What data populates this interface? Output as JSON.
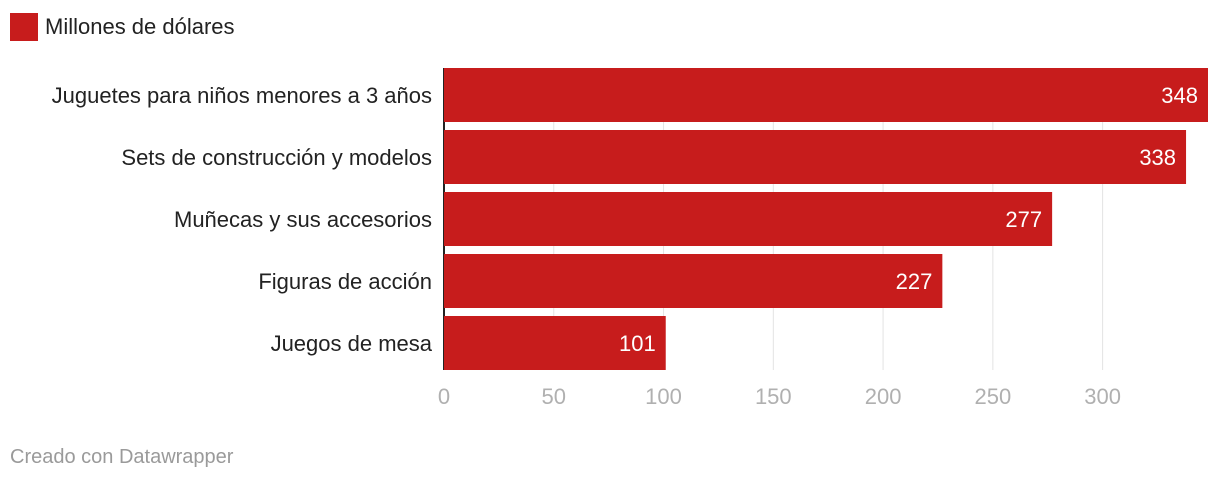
{
  "chart_data": {
    "type": "bar",
    "orientation": "horizontal",
    "categories": [
      "Juguetes para niños menores a 3 años",
      "Sets de construcción y modelos",
      "Muñecas y sus accesorios",
      "Figuras de acción",
      "Juegos de mesa"
    ],
    "series": [
      {
        "name": "Millones de dólares",
        "values": [
          348,
          338,
          277,
          227,
          101
        ]
      }
    ],
    "xlim": [
      0,
      348
    ],
    "xticks": [
      0,
      50,
      100,
      150,
      200,
      250,
      300
    ],
    "grid": true,
    "legend": "top-left",
    "bar_color": "#c71c1c",
    "grid_color": "#e3e3e3",
    "axis_color": "#222222"
  },
  "footer": {
    "credit": "Creado con Datawrapper"
  }
}
